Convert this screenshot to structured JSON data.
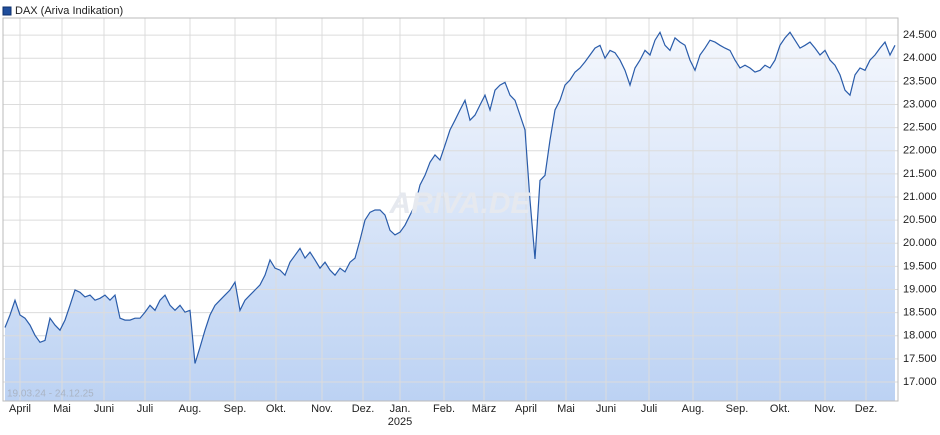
{
  "chart_data": {
    "type": "area-line",
    "legend": "DAX (Ariva Indikation)",
    "date_range": "19.03.24 - 24.12.25",
    "watermark": "ARIVA.DE",
    "color": "#2a5caa",
    "grid": true,
    "xlim": [
      -0.4,
      178.6
    ],
    "ylim": [
      16590,
      24870
    ],
    "yticks": [
      {
        "value": 17000,
        "label": "17.000"
      },
      {
        "value": 17500,
        "label": "17.500"
      },
      {
        "value": 18000,
        "label": "18.000"
      },
      {
        "value": 18500,
        "label": "18.500"
      },
      {
        "value": 19000,
        "label": "19.000"
      },
      {
        "value": 19500,
        "label": "19.500"
      },
      {
        "value": 20000,
        "label": "20.000"
      },
      {
        "value": 20500,
        "label": "20.500"
      },
      {
        "value": 21000,
        "label": "21.000"
      },
      {
        "value": 21500,
        "label": "21.500"
      },
      {
        "value": 22000,
        "label": "22.000"
      },
      {
        "value": 22500,
        "label": "22.500"
      },
      {
        "value": 23000,
        "label": "23.000"
      },
      {
        "value": 23500,
        "label": "23.500"
      },
      {
        "value": 24000,
        "label": "24.000"
      },
      {
        "value": 24500,
        "label": "24.500"
      }
    ],
    "xticks": [
      {
        "value": 3,
        "label": "April"
      },
      {
        "value": 11.4,
        "label": "Mai"
      },
      {
        "value": 19.8,
        "label": "Juni"
      },
      {
        "value": 28,
        "label": "Juli"
      },
      {
        "value": 37,
        "label": "Aug."
      },
      {
        "value": 46,
        "label": "Sep."
      },
      {
        "value": 54.2,
        "label": "Okt."
      },
      {
        "value": 63.4,
        "label": "Nov."
      },
      {
        "value": 71.6,
        "label": "Dez."
      },
      {
        "value": 79,
        "label": "Jan."
      },
      {
        "value": 87.8,
        "label": "Feb."
      },
      {
        "value": 95.8,
        "label": "März"
      },
      {
        "value": 104.2,
        "label": "April"
      },
      {
        "value": 112.2,
        "label": "Mai"
      },
      {
        "value": 120.2,
        "label": "Juni"
      },
      {
        "value": 128.8,
        "label": "Juli"
      },
      {
        "value": 137.6,
        "label": "Aug."
      },
      {
        "value": 146.4,
        "label": "Sep."
      },
      {
        "value": 155,
        "label": "Okt."
      },
      {
        "value": 164,
        "label": "Nov."
      },
      {
        "value": 172.2,
        "label": "Dez."
      }
    ],
    "year_marker": {
      "value": 79,
      "label": "2025"
    },
    "values": [
      18180,
      18450,
      18770,
      18450,
      18380,
      18230,
      18010,
      17860,
      17900,
      18380,
      18230,
      18120,
      18340,
      18660,
      18990,
      18940,
      18840,
      18880,
      18770,
      18810,
      18880,
      18770,
      18880,
      18380,
      18340,
      18340,
      18380,
      18380,
      18510,
      18660,
      18550,
      18770,
      18880,
      18660,
      18550,
      18660,
      18510,
      18550,
      17400,
      17750,
      18120,
      18450,
      18660,
      18770,
      18880,
      18990,
      19160,
      18550,
      18770,
      18880,
      18990,
      19100,
      19310,
      19640,
      19460,
      19420,
      19310,
      19590,
      19740,
      19890,
      19680,
      19810,
      19640,
      19460,
      19590,
      19420,
      19310,
      19460,
      19380,
      19590,
      19680,
      20070,
      20500,
      20670,
      20720,
      20720,
      20610,
      20280,
      20180,
      20240,
      20390,
      20610,
      20820,
      21260,
      21470,
      21750,
      21910,
      21800,
      22120,
      22450,
      22660,
      22880,
      23090,
      22660,
      22770,
      22990,
      23200,
      22880,
      23310,
      23420,
      23480,
      23200,
      23090,
      22770,
      22450,
      20930,
      19660,
      21360,
      21470,
      22230,
      22880,
      23090,
      23420,
      23530,
      23700,
      23790,
      23920,
      24070,
      24220,
      24280,
      24000,
      24170,
      24120,
      23960,
      23740,
      23420,
      23790,
      23960,
      24170,
      24070,
      24390,
      24560,
      24280,
      24170,
      24440,
      24350,
      24280,
      23960,
      23740,
      24070,
      24220,
      24390,
      24350,
      24280,
      24220,
      24170,
      23960,
      23790,
      23850,
      23790,
      23700,
      23740,
      23850,
      23790,
      23960,
      24280,
      24440,
      24560,
      24390,
      24220,
      24280,
      24350,
      24220,
      24070,
      24170,
      23960,
      23850,
      23640,
      23310,
      23200,
      23640,
      23790,
      23740,
      23960,
      24070,
      24220,
      24350,
      24070,
      24280
    ]
  }
}
